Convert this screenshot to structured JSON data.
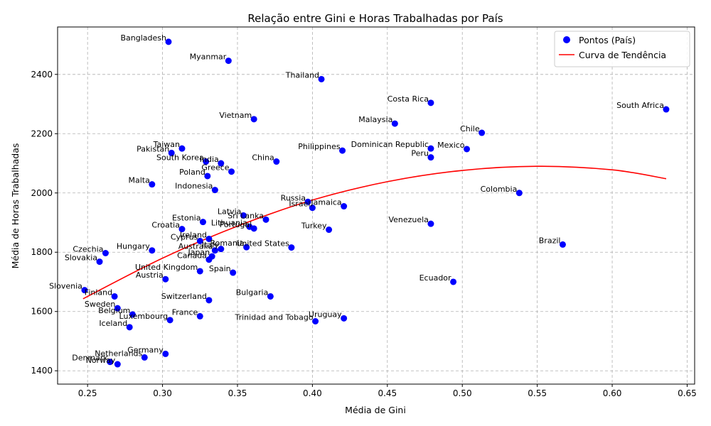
{
  "chart_data": {
    "type": "scatter",
    "title": "Relação entre Gini e Horas Trabalhadas por País",
    "xlabel": "Média de Gini",
    "ylabel": "Média de Horas Trabalhadas",
    "xlim": [
      0.23,
      0.655
    ],
    "ylim": [
      1355,
      2560
    ],
    "xticks": [
      "0.25",
      "0.30",
      "0.35",
      "0.40",
      "0.45",
      "0.50",
      "0.55",
      "0.60",
      "0.65"
    ],
    "xtick_values": [
      0.25,
      0.3,
      0.35,
      0.4,
      0.45,
      0.5,
      0.55,
      0.6,
      0.65
    ],
    "yticks": [
      "1400",
      "1600",
      "1800",
      "2000",
      "2200",
      "2400"
    ],
    "ytick_values": [
      1400,
      1600,
      1800,
      2000,
      2200,
      2400
    ],
    "grid": true,
    "legend_position": "top-right",
    "colors": {
      "points": "#0000ff",
      "trend": "#ff0000",
      "grid": "#b0b0b0"
    },
    "series": [
      {
        "name": "Pontos (País)",
        "kind": "scatter",
        "points": [
          {
            "label": "Bangladesh",
            "x": 0.304,
            "y": 2510
          },
          {
            "label": "Myanmar",
            "x": 0.344,
            "y": 2446
          },
          {
            "label": "Thailand",
            "x": 0.406,
            "y": 2384
          },
          {
            "label": "Costa Rica",
            "x": 0.479,
            "y": 2304
          },
          {
            "label": "South Africa",
            "x": 0.636,
            "y": 2282
          },
          {
            "label": "Vietnam",
            "x": 0.361,
            "y": 2249
          },
          {
            "label": "Malaysia",
            "x": 0.455,
            "y": 2234
          },
          {
            "label": "Chile",
            "x": 0.513,
            "y": 2203
          },
          {
            "label": "Taiwan",
            "x": 0.313,
            "y": 2150
          },
          {
            "label": "Pakistan",
            "x": 0.306,
            "y": 2135
          },
          {
            "label": "Philippines",
            "x": 0.42,
            "y": 2143
          },
          {
            "label": "Dominican Republic",
            "x": 0.479,
            "y": 2150
          },
          {
            "label": "Mexico",
            "x": 0.503,
            "y": 2148
          },
          {
            "label": "Peru",
            "x": 0.479,
            "y": 2120
          },
          {
            "label": "South Korea",
            "x": 0.329,
            "y": 2106
          },
          {
            "label": "India",
            "x": 0.339,
            "y": 2100
          },
          {
            "label": "China",
            "x": 0.376,
            "y": 2106
          },
          {
            "label": "Greece",
            "x": 0.346,
            "y": 2072
          },
          {
            "label": "Poland",
            "x": 0.33,
            "y": 2057
          },
          {
            "label": "Malta",
            "x": 0.293,
            "y": 2029
          },
          {
            "label": "Indonesia",
            "x": 0.335,
            "y": 2010
          },
          {
            "label": "Colombia",
            "x": 0.538,
            "y": 2000
          },
          {
            "label": "Russia",
            "x": 0.397,
            "y": 1970
          },
          {
            "label": "Israel",
            "x": 0.4,
            "y": 1950
          },
          {
            "label": "Jamaica",
            "x": 0.421,
            "y": 1955
          },
          {
            "label": "Latvia",
            "x": 0.354,
            "y": 1924
          },
          {
            "label": "Sri Lanka",
            "x": 0.369,
            "y": 1910
          },
          {
            "label": "Estonia",
            "x": 0.327,
            "y": 1902
          },
          {
            "label": "Lithuania",
            "x": 0.358,
            "y": 1886
          },
          {
            "label": "Portugal",
            "x": 0.361,
            "y": 1880
          },
          {
            "label": "Croatia",
            "x": 0.313,
            "y": 1878
          },
          {
            "label": "Turkey",
            "x": 0.411,
            "y": 1876
          },
          {
            "label": "Venezuela",
            "x": 0.479,
            "y": 1896
          },
          {
            "label": "Ireland",
            "x": 0.331,
            "y": 1845
          },
          {
            "label": "Cyprus",
            "x": 0.325,
            "y": 1838
          },
          {
            "label": "Brazil",
            "x": 0.567,
            "y": 1826
          },
          {
            "label": "Romania",
            "x": 0.356,
            "y": 1817
          },
          {
            "label": "United States",
            "x": 0.386,
            "y": 1816
          },
          {
            "label": "Italy",
            "x": 0.339,
            "y": 1811
          },
          {
            "label": "Australia",
            "x": 0.335,
            "y": 1806
          },
          {
            "label": "Hungary",
            "x": 0.293,
            "y": 1806
          },
          {
            "label": "Czechia",
            "x": 0.262,
            "y": 1797
          },
          {
            "label": "Japan",
            "x": 0.333,
            "y": 1786
          },
          {
            "label": "Canada",
            "x": 0.331,
            "y": 1775
          },
          {
            "label": "Slovakia",
            "x": 0.258,
            "y": 1768
          },
          {
            "label": "United Kingdom",
            "x": 0.325,
            "y": 1736
          },
          {
            "label": "Spain",
            "x": 0.347,
            "y": 1731
          },
          {
            "label": "Austria",
            "x": 0.302,
            "y": 1709
          },
          {
            "label": "Ecuador",
            "x": 0.494,
            "y": 1700
          },
          {
            "label": "Slovenia",
            "x": 0.248,
            "y": 1672
          },
          {
            "label": "Finland",
            "x": 0.268,
            "y": 1651
          },
          {
            "label": "Bulgaria",
            "x": 0.372,
            "y": 1651
          },
          {
            "label": "Switzerland",
            "x": 0.331,
            "y": 1638
          },
          {
            "label": "Sweden",
            "x": 0.27,
            "y": 1611
          },
          {
            "label": "Belgium",
            "x": 0.28,
            "y": 1590
          },
          {
            "label": "France",
            "x": 0.325,
            "y": 1584
          },
          {
            "label": "Luxembourg",
            "x": 0.305,
            "y": 1571
          },
          {
            "label": "Uruguay",
            "x": 0.421,
            "y": 1577
          },
          {
            "label": "Trinidad and Tobago",
            "x": 0.402,
            "y": 1567
          },
          {
            "label": "Iceland",
            "x": 0.278,
            "y": 1547
          },
          {
            "label": "Germany",
            "x": 0.302,
            "y": 1457
          },
          {
            "label": "Netherlands",
            "x": 0.288,
            "y": 1445
          },
          {
            "label": "Denmark",
            "x": 0.265,
            "y": 1430
          },
          {
            "label": "Norway",
            "x": 0.27,
            "y": 1422
          }
        ]
      },
      {
        "name": "Curva de Tendência",
        "kind": "line",
        "points": [
          {
            "x": 0.247,
            "y": 1643
          },
          {
            "x": 0.3,
            "y": 1780
          },
          {
            "x": 0.35,
            "y": 1888
          },
          {
            "x": 0.4,
            "y": 1976
          },
          {
            "x": 0.45,
            "y": 2038
          },
          {
            "x": 0.5,
            "y": 2076
          },
          {
            "x": 0.55,
            "y": 2090
          },
          {
            "x": 0.6,
            "y": 2078
          },
          {
            "x": 0.636,
            "y": 2048
          }
        ]
      }
    ]
  }
}
